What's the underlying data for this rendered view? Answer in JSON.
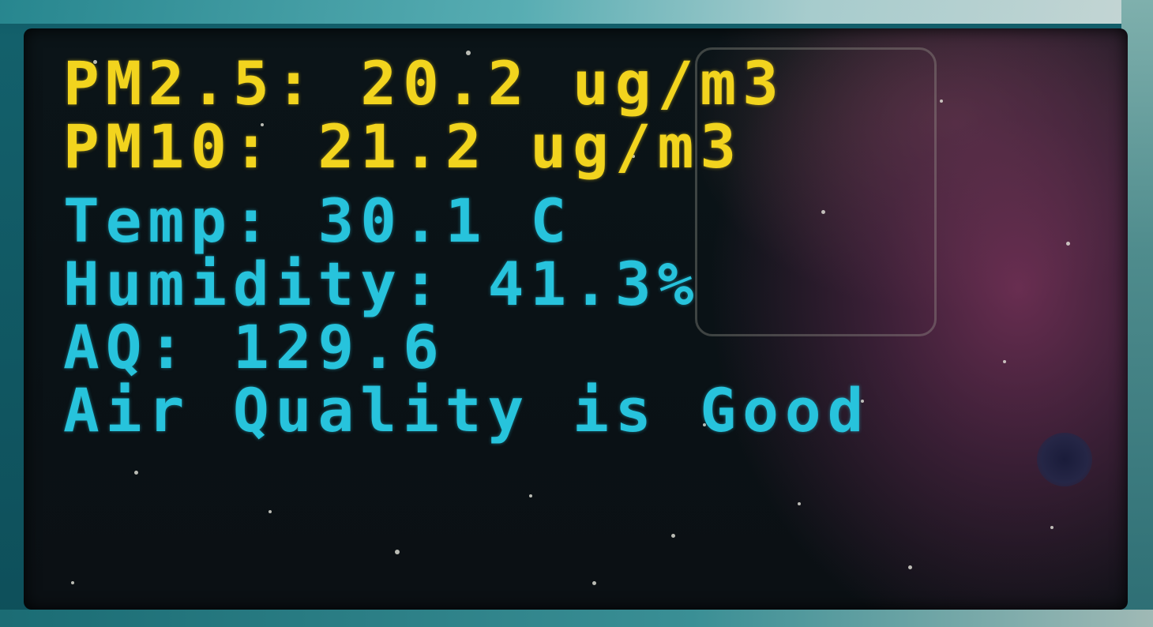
{
  "display": {
    "pm25": {
      "label": "PM2.5:",
      "value": "20.2",
      "unit": "ug/m3"
    },
    "pm10": {
      "label": "PM10:",
      "value": "21.2",
      "unit": "ug/m3"
    },
    "temp": {
      "label": "Temp:",
      "value": "30.1",
      "unit": "C"
    },
    "humidity": {
      "label": "Humidity:",
      "value": "41.3%"
    },
    "aq": {
      "label": "AQ:",
      "value": "129.6"
    },
    "status": "Air Quality is Good"
  },
  "colors": {
    "header_text": "#f2d41e",
    "body_text": "#27c3dc",
    "screen_bg": "#0a1216"
  }
}
